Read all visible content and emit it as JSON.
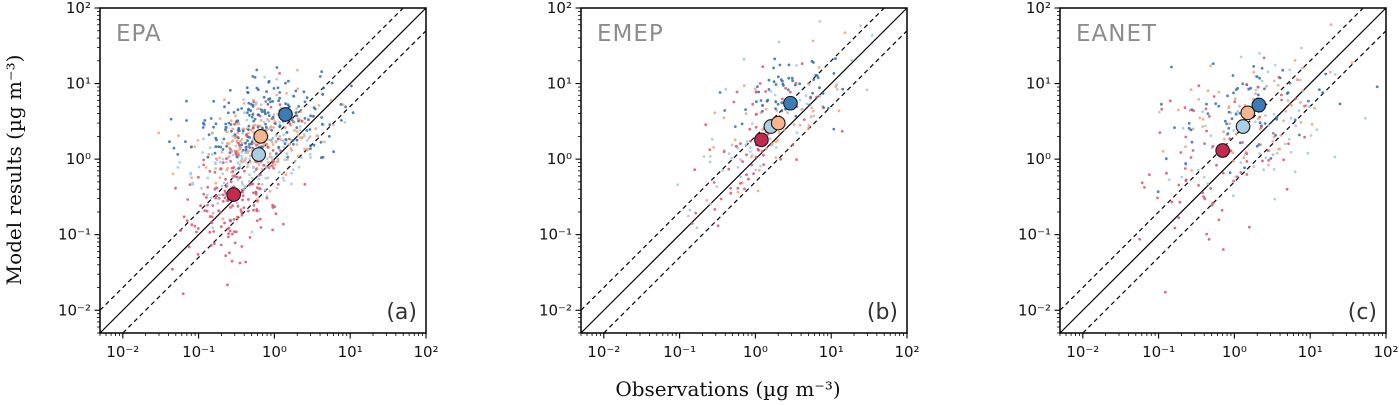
{
  "chart_data": {
    "type": "scatter",
    "scale": {
      "x": "log",
      "y": "log"
    },
    "xlim": [
      0.005,
      100
    ],
    "ylim": [
      0.005,
      100
    ],
    "xlabel": "Observations (µg m⁻³)",
    "ylabel": "Model results (µg m⁻³)",
    "tick_values": [
      0.01,
      0.1,
      1,
      10,
      100
    ],
    "tick_labels": [
      "10⁻²",
      "10⁻¹",
      "10⁰",
      "10¹",
      "10²"
    ],
    "grid": false,
    "legend": "none",
    "reference_lines": [
      {
        "name": "one-to-one",
        "style": "solid",
        "equation": "y = x"
      },
      {
        "name": "factor-2-upper",
        "style": "dashed",
        "equation": "y = 2x"
      },
      {
        "name": "factor-2-lower",
        "style": "dashed",
        "equation": "y = x/2"
      }
    ],
    "series_colors": {
      "dark_blue": "#3b7cb8",
      "light_blue": "#a8cfe4",
      "peach": "#f5b68d",
      "red": "#c42a4d"
    },
    "dot_colors": {
      "dark_blue": "#2e6fad",
      "light_blue": "#a3c8e0",
      "peach": "#f2a17a",
      "red": "#d9536a"
    },
    "panels": [
      {
        "title": "EPA",
        "letter": "(a)",
        "mean_markers": [
          {
            "series": "red",
            "obs": 0.29,
            "model": 0.34
          },
          {
            "series": "light_blue",
            "obs": 0.62,
            "model": 1.15
          },
          {
            "series": "peach",
            "obs": 0.66,
            "model": 2.0
          },
          {
            "series": "dark_blue",
            "obs": 1.4,
            "model": 3.9
          }
        ],
        "scatter_clouds": [
          {
            "series": "dark_blue",
            "n": 190,
            "log10_mean": [
              -0.18,
              0.5
            ],
            "log10_sd": [
              0.52,
              0.3
            ],
            "corr": 0.35
          },
          {
            "series": "light_blue",
            "n": 170,
            "log10_mean": [
              -0.3,
              0.04
            ],
            "log10_sd": [
              0.45,
              0.35
            ],
            "corr": 0.4
          },
          {
            "series": "peach",
            "n": 170,
            "log10_mean": [
              -0.18,
              0.27
            ],
            "log10_sd": [
              0.4,
              0.32
            ],
            "corr": 0.35
          },
          {
            "series": "red",
            "n": 180,
            "log10_mean": [
              -0.5,
              -0.4
            ],
            "log10_sd": [
              0.36,
              0.52
            ],
            "corr": 0.45
          }
        ]
      },
      {
        "title": "EMEP",
        "letter": "(b)",
        "mean_markers": [
          {
            "series": "red",
            "obs": 1.2,
            "model": 1.8
          },
          {
            "series": "light_blue",
            "obs": 1.6,
            "model": 2.7
          },
          {
            "series": "peach",
            "obs": 2.0,
            "model": 3.0
          },
          {
            "series": "dark_blue",
            "obs": 2.9,
            "model": 5.5
          }
        ],
        "scatter_clouds": [
          {
            "series": "dark_blue",
            "n": 60,
            "log10_mean": [
              0.5,
              0.82
            ],
            "log10_sd": [
              0.42,
              0.33
            ],
            "corr": 0.55
          },
          {
            "series": "light_blue",
            "n": 55,
            "log10_mean": [
              0.05,
              0.3
            ],
            "log10_sd": [
              0.6,
              0.55
            ],
            "corr": 0.75
          },
          {
            "series": "peach",
            "n": 50,
            "log10_mean": [
              0.2,
              0.42
            ],
            "log10_sd": [
              0.5,
              0.45
            ],
            "corr": 0.6
          },
          {
            "series": "red",
            "n": 60,
            "log10_mean": [
              0.0,
              0.15
            ],
            "log10_sd": [
              0.5,
              0.52
            ],
            "corr": 0.7
          }
        ]
      },
      {
        "title": "EANET",
        "letter": "(c)",
        "mean_markers": [
          {
            "series": "red",
            "obs": 0.7,
            "model": 1.3
          },
          {
            "series": "light_blue",
            "obs": 1.3,
            "model": 2.7
          },
          {
            "series": "peach",
            "obs": 1.5,
            "model": 4.1
          },
          {
            "series": "dark_blue",
            "obs": 2.1,
            "model": 5.2
          }
        ],
        "scatter_clouds": [
          {
            "series": "dark_blue",
            "n": 75,
            "log10_mean": [
              0.22,
              0.62
            ],
            "log10_sd": [
              0.6,
              0.35
            ],
            "corr": 0.3
          },
          {
            "series": "light_blue",
            "n": 65,
            "log10_mean": [
              0.05,
              0.4
            ],
            "log10_sd": [
              0.6,
              0.5
            ],
            "corr": 0.3
          },
          {
            "series": "peach",
            "n": 65,
            "log10_mean": [
              0.15,
              0.55
            ],
            "log10_sd": [
              0.55,
              0.42
            ],
            "corr": 0.35
          },
          {
            "series": "red",
            "n": 75,
            "log10_mean": [
              -0.12,
              0.05
            ],
            "log10_sd": [
              0.55,
              0.55
            ],
            "corr": 0.35
          }
        ]
      }
    ]
  }
}
